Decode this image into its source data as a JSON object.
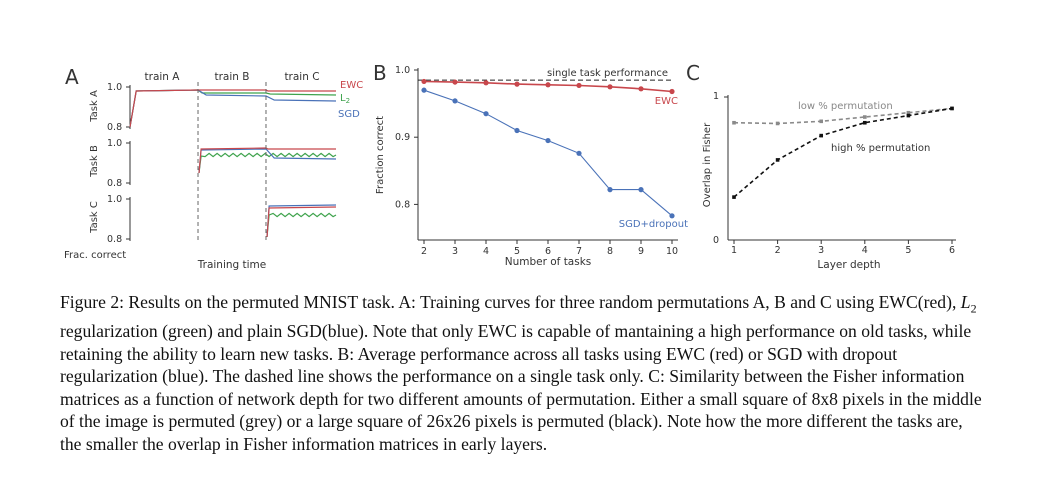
{
  "colors": {
    "ewc": "#c8474c",
    "l2": "#3fa34d",
    "sgd": "#4a72b8",
    "grey": "#8a8a8a",
    "black": "#111111",
    "axis": "#333333"
  },
  "panel_labels": [
    "A",
    "B",
    "C"
  ],
  "chart_data": [
    {
      "panel": "A",
      "type": "line",
      "xlabel": "Training time",
      "ylabel": "Frac. correct",
      "phase_labels": [
        "train A",
        "train B",
        "train C"
      ],
      "series_labels": [
        "EWC",
        "L2",
        "SGD"
      ],
      "rows": [
        {
          "name": "Task A",
          "ylim": [
            0.8,
            1.0
          ],
          "tick_labels": [
            "1.0",
            "0.8"
          ]
        },
        {
          "name": "Task B",
          "ylim": [
            0.8,
            1.0
          ],
          "tick_labels": [
            "1.0",
            "0.8"
          ]
        },
        {
          "name": "Task C",
          "ylim": [
            0.8,
            1.0
          ],
          "tick_labels": [
            "1.0",
            "0.8"
          ]
        }
      ],
      "curves": {
        "task_a": {
          "ewc": [
            [
              0,
              0.8
            ],
            [
              0.03,
              0.98
            ],
            [
              0.33,
              0.985
            ],
            [
              0.34,
              0.985
            ],
            [
              0.66,
              0.985
            ],
            [
              0.67,
              0.98
            ],
            [
              1,
              0.98
            ]
          ],
          "l2": [
            [
              0,
              0.8
            ],
            [
              0.03,
              0.98
            ],
            [
              0.33,
              0.985
            ],
            [
              0.35,
              0.97
            ],
            [
              0.66,
              0.97
            ],
            [
              0.68,
              0.965
            ],
            [
              1,
              0.96
            ]
          ],
          "sgd": [
            [
              0,
              0.8
            ],
            [
              0.03,
              0.98
            ],
            [
              0.33,
              0.985
            ],
            [
              0.37,
              0.96
            ],
            [
              0.66,
              0.955
            ],
            [
              0.7,
              0.935
            ],
            [
              1,
              0.93
            ]
          ]
        },
        "task_b": {
          "ewc": [
            [
              0.335,
              0.85
            ],
            [
              0.345,
              0.97
            ],
            [
              0.66,
              0.975
            ],
            [
              0.67,
              0.97
            ],
            [
              1,
              0.97
            ]
          ],
          "l2": [
            [
              0.335,
              0.85
            ],
            [
              0.345,
              0.935
            ],
            [
              0.66,
              0.94
            ],
            [
              0.68,
              0.94
            ],
            [
              1,
              0.94
            ]
          ],
          "sgd": [
            [
              0.335,
              0.85
            ],
            [
              0.345,
              0.965
            ],
            [
              0.66,
              0.97
            ],
            [
              0.7,
              0.925
            ],
            [
              1,
              0.92
            ]
          ]
        },
        "task_c": {
          "ewc": [
            [
              0.665,
              0.81
            ],
            [
              0.675,
              0.955
            ],
            [
              1,
              0.96
            ]
          ],
          "l2": [
            [
              0.665,
              0.81
            ],
            [
              0.675,
              0.92
            ],
            [
              1,
              0.92
            ]
          ],
          "sgd": [
            [
              0.665,
              0.81
            ],
            [
              0.675,
              0.965
            ],
            [
              1,
              0.97
            ]
          ]
        }
      }
    },
    {
      "panel": "B",
      "type": "line",
      "xlabel": "Number of tasks",
      "ylabel": "Fraction correct",
      "x": [
        2,
        3,
        4,
        5,
        6,
        7,
        8,
        9,
        10
      ],
      "xlim": [
        2,
        10
      ],
      "ylim": [
        0.75,
        1.0
      ],
      "yticks": [
        1.0,
        0.9,
        0.8
      ],
      "ytick_labels": [
        "1.0",
        "0.9",
        "0.8"
      ],
      "series": [
        {
          "name": "EWC",
          "values": [
            0.983,
            0.982,
            0.981,
            0.979,
            0.978,
            0.977,
            0.975,
            0.972,
            0.968
          ]
        },
        {
          "name": "SGD+dropout",
          "values": [
            0.97,
            0.954,
            0.935,
            0.91,
            0.895,
            0.876,
            0.822,
            0.822,
            0.783
          ]
        }
      ],
      "reference_line": {
        "label": "single task performance",
        "value": 0.985
      }
    },
    {
      "panel": "C",
      "type": "line",
      "xlabel": "Layer depth",
      "ylabel": "Overlap in Fisher",
      "x": [
        1,
        2,
        3,
        4,
        5,
        6
      ],
      "xlim": [
        1,
        6
      ],
      "ylim": [
        0,
        1
      ],
      "ytick_labels": [
        "1",
        "0"
      ],
      "series": [
        {
          "name": "low % permutation",
          "values": [
            0.82,
            0.815,
            0.83,
            0.86,
            0.89,
            0.92
          ]
        },
        {
          "name": "high % permutation",
          "values": [
            0.3,
            0.56,
            0.73,
            0.82,
            0.87,
            0.92
          ]
        }
      ]
    }
  ],
  "caption": {
    "p1": "Figure 2:  Results on the permuted MNIST task. A: Training curves for three random permutations A, B and C using EWC(red), ",
    "l2_symbol": "L",
    "l2_sub": "2",
    "p2": " regularization (green) and plain SGD(blue). Note that only EWC is capable of mantaining a high performance on old tasks, while retaining the ability to learn new tasks. B: Average performance across all tasks using EWC (red) or SGD with dropout regularization (blue).  The dashed line shows the performance on a single task only. C: Similarity between the Fisher information matrices as a function of network depth for two different amounts of permutation. Either a small square of 8x8 pixels in the middle of the image is permuted (grey) or a large square of 26x26 pixels is permuted (black). Note how the more different the tasks are, the smaller the overlap in Fisher information matrices in early layers."
  }
}
